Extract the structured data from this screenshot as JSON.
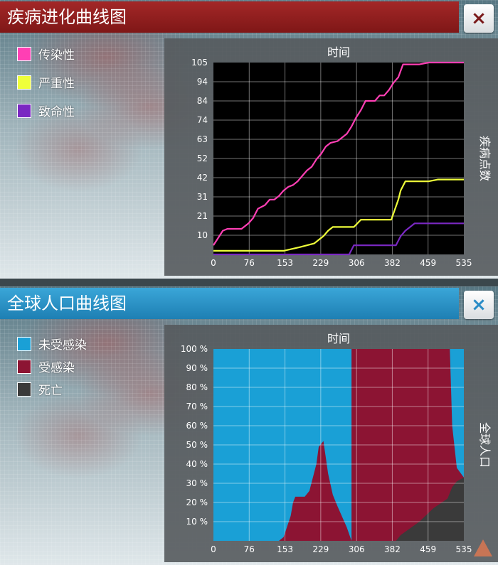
{
  "colors": {
    "infectivity": "#ff3fb4",
    "severity": "#efff3a",
    "lethality": "#7a28c2",
    "uninfected": "#1aa0d6",
    "infected": "#8c1433",
    "dead": "#3a3a3a"
  },
  "top": {
    "title": "疾病进化曲线图",
    "close_label": "×",
    "legend": [
      {
        "label": "传染性",
        "color_key": "infectivity"
      },
      {
        "label": "严重性",
        "color_key": "severity"
      },
      {
        "label": "致命性",
        "color_key": "lethality"
      }
    ]
  },
  "bottom": {
    "title": "全球人口曲线图",
    "close_label": "×",
    "legend": [
      {
        "label": "未受感染",
        "color_key": "uninfected"
      },
      {
        "label": "受感染",
        "color_key": "infected"
      },
      {
        "label": "死亡",
        "color_key": "dead"
      }
    ]
  },
  "chart_data": [
    {
      "type": "line",
      "title": "",
      "xlabel": "时间",
      "ylabel": "疾病点数",
      "x_ticks": [
        "0",
        "76",
        "153",
        "229",
        "306",
        "382",
        "459",
        "535"
      ],
      "y_ticks": [
        "10",
        "21",
        "31",
        "42",
        "52",
        "63",
        "74",
        "84",
        "94",
        "105"
      ],
      "xlim": [
        0,
        535
      ],
      "ylim": [
        0,
        105
      ],
      "grid": true,
      "series": [
        {
          "name": "传染性",
          "x": [
            0,
            10,
            20,
            30,
            60,
            75,
            85,
            95,
            110,
            120,
            130,
            140,
            150,
            160,
            170,
            180,
            190,
            200,
            210,
            220,
            230,
            240,
            250,
            265,
            285,
            295,
            305,
            315,
            325,
            345,
            355,
            365,
            375,
            385,
            395,
            405,
            420,
            440,
            460,
            480,
            500,
            520,
            535
          ],
          "y": [
            5,
            9,
            13,
            14,
            14,
            17,
            20,
            25,
            27,
            30,
            30,
            32,
            35,
            37,
            38,
            40,
            43,
            46,
            48,
            52,
            55,
            59,
            61,
            62,
            66,
            70,
            75,
            79,
            84,
            84,
            87,
            87,
            90,
            94,
            97,
            104,
            104,
            104,
            105,
            105,
            105,
            105,
            105
          ]
        },
        {
          "name": "严重性",
          "x": [
            0,
            100,
            150,
            185,
            215,
            235,
            245,
            255,
            270,
            280,
            300,
            315,
            350,
            380,
            395,
            400,
            410,
            430,
            460,
            480,
            500,
            535
          ],
          "y": [
            2,
            2,
            2,
            4,
            6,
            10,
            13,
            15,
            15,
            15,
            15,
            19,
            19,
            19,
            30,
            35,
            40,
            40,
            40,
            41,
            41,
            41
          ]
        },
        {
          "name": "致命性",
          "x": [
            0,
            100,
            150,
            200,
            290,
            300,
            390,
            400,
            410,
            430,
            460,
            500,
            535
          ],
          "y": [
            0,
            0,
            0,
            0,
            0,
            5,
            5,
            10,
            13,
            17,
            17,
            17,
            17
          ]
        }
      ]
    },
    {
      "type": "area",
      "title": "",
      "xlabel": "时间",
      "ylabel": "全球人口",
      "x_ticks": [
        "0",
        "76",
        "153",
        "229",
        "306",
        "382",
        "459",
        "535"
      ],
      "y_ticks": [
        "10 %",
        "20 %",
        "30 %",
        "40 %",
        "50 %",
        "60 %",
        "70 %",
        "80 %",
        "90 %",
        "100 %"
      ],
      "xlim": [
        0,
        535
      ],
      "ylim": [
        0,
        100
      ],
      "grid": true,
      "stacked_from_top": true,
      "series": [
        {
          "name": "未受感染",
          "x": [
            0,
            140,
            150,
            165,
            170,
            175,
            195,
            205,
            220,
            225,
            235,
            245,
            255,
            265,
            285,
            295,
            300,
            535
          ],
          "y": [
            100,
            100,
            98,
            87,
            80,
            77,
            77,
            74,
            60,
            51,
            48,
            65,
            76,
            82,
            93,
            100,
            100,
            100
          ]
        },
        {
          "name": "死亡",
          "x": [
            0,
            390,
            400,
            440,
            470,
            500,
            510,
            520,
            535
          ],
          "y": [
            0,
            0,
            3,
            10,
            17,
            22,
            28,
            31,
            33
          ]
        }
      ]
    }
  ]
}
